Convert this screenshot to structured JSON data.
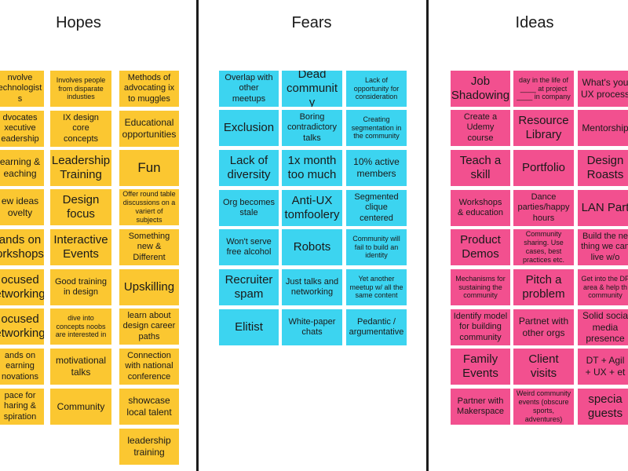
{
  "columns": {
    "hopes": "Hopes",
    "fears": "Fears",
    "ideas": "Ideas"
  },
  "hopes": [
    "nvolve\nechnologist\ns",
    "Involves people\nfrom disparate\nindusties",
    "Methods of\nadvocating ix\nto muggles",
    "dvocates\nxecutive\neadership",
    "IX design\ncore\nconcepts",
    "Educational\nopportunities",
    "earning &\neaching",
    "Leadership\nTraining",
    "Fun",
    "ew ideas\novelty",
    "Design\nfocus",
    "Offer round table\ndiscussions on a\nvariert of subjects",
    "ands on\norkshops",
    "Interactive\nEvents",
    "Something\nnew &\nDifferent",
    "ocused\networking",
    "Good training\nin design",
    "Upskilling",
    "ocused\networking",
    "dive into\nconcepts noobs\nare interested in",
    "learn about\ndesign career\npaths",
    "ands on\nearning\nnovations",
    "motivational\ntalks",
    "Connection\nwith national\nconference",
    "pace for\nharing &\nspiration",
    "Community",
    "showcase\nlocal talent",
    "leadership\ntraining"
  ],
  "fears": [
    "Overlap with\nother\nmeetups",
    "Dead\ncommunit\ny",
    "Lack of\nopportunity for\nconsideration",
    "Exclusion",
    "Boring\ncontradictory\ntalks",
    "Creating\nsegmentation in\nthe community",
    "Lack of\ndiversity",
    "1x month\ntoo much",
    "10% active\nmembers",
    "Org becomes\nstale",
    "Anti-UX\ntomfoolery",
    "Segmented\nclique\ncentered",
    "Won't serve\nfree alcohol",
    "Robots",
    "Community will\nfail to build an\nidentity",
    "Recruiter\nspam",
    "Just talks and\nnetworking",
    "Yet another\nmeetup w/ all the\nsame content",
    "Elitist",
    "White-paper\nchats",
    "Pedantic /\nargumentative"
  ],
  "ideas": [
    "Job\nShadowing",
    "day in the life of\n____ at project\n____ in company",
    "What's you\nUX process",
    "Create a\nUdemy\ncourse",
    "Resource\nLibrary",
    "Mentorship",
    "Teach a\nskill",
    "Portfolio",
    "Design\nRoasts",
    "Workshops\n& education",
    "Dance\nparties/happy\nhours",
    "LAN Part",
    "Product\nDemos",
    "Community\nsharing. Use\ncases, best\npractices etc.",
    "Build the ne\nthing we can\nlive w/o",
    "Mechanisms for\nsustaining the\ncommunity",
    "Pitch a\nproblem",
    "Get into the DF\narea & help th\ncommunity",
    "Identify model\nfor building\ncommunity",
    "Partnet with\nother orgs",
    "Solid socia\nmedia\npresence",
    "Family\nEvents",
    "Client\nvisits",
    "DT + Agil\n+ UX + et",
    "Partner with\nMakerspace",
    "Weird community\nevents (obscure\nsports,\nadventures)",
    "specia\nguests"
  ]
}
